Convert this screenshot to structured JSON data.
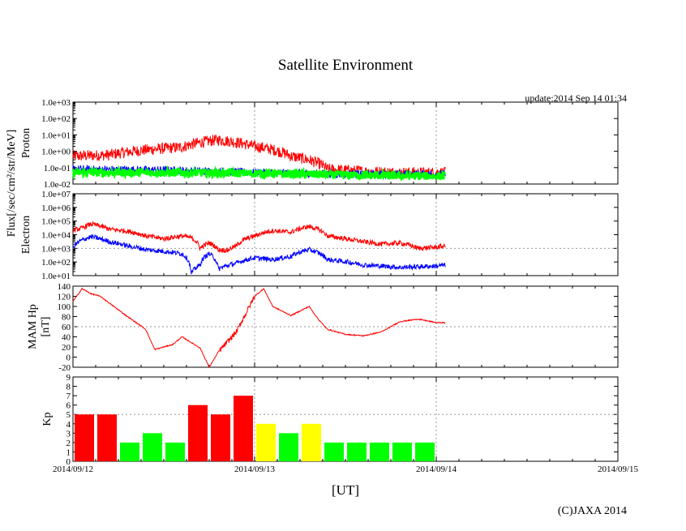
{
  "title": "Satellite Environment",
  "update": "update:2014 Sep 14 01:34",
  "copyright": "(C)JAXA 2014",
  "xlabel": "[UT]",
  "x_ticks": [
    "2014/09/12",
    "2014/09/13",
    "2014/09/14",
    "2014/09/15"
  ],
  "flux_label": "Flux[/sec/cm²/str/MeV]",
  "colors": {
    "red": "#ff0000",
    "blue": "#0000ff",
    "green": "#00ff00",
    "yellow": "#ffff00",
    "grid": "#999999"
  },
  "chart_data": [
    {
      "type": "line",
      "panel": "proton",
      "ylabel": "Proton",
      "yscale": "log",
      "ylim": [
        0.01,
        1000
      ],
      "xlim": [
        "2014/09/12",
        "2014/09/15"
      ],
      "yticks": [
        "1.0e-02",
        "1.0e-01",
        "1.0e+00",
        "1.0e+01",
        "1.0e+02",
        "1.0e+03"
      ],
      "series": [
        {
          "color": "#ff0000",
          "x": [
            0,
            0.2,
            0.4,
            0.6,
            0.8,
            1.0,
            1.2,
            1.4,
            1.6,
            1.8,
            2.0,
            2.05
          ],
          "y": [
            0.5,
            0.6,
            1.2,
            1.8,
            5.0,
            2.0,
            0.5,
            0.08,
            0.06,
            0.05,
            0.05,
            0.05
          ]
        },
        {
          "color": "#0000ff",
          "x": [
            0,
            0.5,
            1.0,
            1.5,
            2.05
          ],
          "y": [
            0.08,
            0.07,
            0.05,
            0.04,
            0.04
          ]
        },
        {
          "color": "#00ff00",
          "x": [
            0,
            0.5,
            1.0,
            1.5,
            2.05
          ],
          "y": [
            0.05,
            0.05,
            0.045,
            0.035,
            0.03
          ]
        }
      ]
    },
    {
      "type": "line",
      "panel": "electron",
      "ylabel": "Electron",
      "yscale": "log",
      "ylim": [
        10,
        10000000
      ],
      "xlim": [
        "2014/09/12",
        "2014/09/15"
      ],
      "yticks": [
        "1.0e+01",
        "1.0e+02",
        "1.0e+03",
        "1.0e+04",
        "1.0e+05",
        "1.0e+06",
        "1.0e+07"
      ],
      "series": [
        {
          "color": "#ff0000",
          "x": [
            0,
            0.05,
            0.1,
            0.2,
            0.3,
            0.4,
            0.5,
            0.6,
            0.65,
            0.7,
            0.75,
            0.8,
            0.85,
            0.9,
            1.0,
            1.1,
            1.2,
            1.3,
            1.4,
            1.5,
            1.6,
            1.7,
            1.8,
            1.9,
            2.0,
            2.05
          ],
          "y": [
            20000,
            30000,
            60000,
            25000,
            18000,
            8000,
            5000,
            8000,
            6000,
            1000,
            2500,
            800,
            700,
            1500,
            8000,
            20000,
            15000,
            40000,
            8000,
            5000,
            3000,
            2000,
            2500,
            1000,
            1200,
            1500
          ]
        },
        {
          "color": "#0000ff",
          "x": [
            0,
            0.1,
            0.2,
            0.3,
            0.4,
            0.5,
            0.6,
            0.65,
            0.7,
            0.75,
            0.8,
            0.9,
            1.0,
            1.1,
            1.2,
            1.3,
            1.4,
            1.6,
            1.8,
            2.0,
            2.05
          ],
          "y": [
            1000,
            7000,
            3000,
            1500,
            800,
            600,
            400,
            12,
            60,
            400,
            30,
            80,
            200,
            150,
            250,
            800,
            150,
            60,
            40,
            50,
            60
          ]
        }
      ]
    },
    {
      "type": "line",
      "panel": "hp",
      "ylabel": "MAM Hp",
      "yunit": "[nT]",
      "ylim": [
        -20,
        140
      ],
      "xlim": [
        "2014/09/12",
        "2014/09/15"
      ],
      "yticks": [
        "-20",
        "0",
        "20",
        "40",
        "60",
        "80",
        "100",
        "120",
        "140"
      ],
      "series": [
        {
          "color": "#ff0000",
          "x": [
            0,
            0.05,
            0.1,
            0.15,
            0.3,
            0.4,
            0.45,
            0.55,
            0.6,
            0.7,
            0.75,
            0.8,
            0.9,
            1.0,
            1.05,
            1.1,
            1.2,
            1.3,
            1.35,
            1.4,
            1.5,
            1.6,
            1.7,
            1.8,
            1.9,
            2.0,
            2.05
          ],
          "y": [
            110,
            135,
            125,
            120,
            80,
            55,
            15,
            25,
            40,
            18,
            -20,
            10,
            50,
            120,
            135,
            100,
            82,
            100,
            75,
            55,
            45,
            42,
            50,
            70,
            75,
            68,
            68
          ]
        }
      ]
    },
    {
      "type": "bar",
      "panel": "kp",
      "ylabel": "Kp",
      "ylim": [
        0,
        9
      ],
      "xlim": [
        "2014/09/12",
        "2014/09/15"
      ],
      "yticks": [
        "0",
        "1",
        "2",
        "3",
        "4",
        "5",
        "6",
        "7",
        "8",
        "9"
      ],
      "bar_interval_hours": 3,
      "values": [
        5,
        5,
        2,
        3,
        2,
        6,
        5,
        7,
        4,
        3,
        4,
        2,
        2,
        2,
        2,
        2
      ],
      "bar_colors": [
        "#ff0000",
        "#ff0000",
        "#00ff00",
        "#00ff00",
        "#00ff00",
        "#ff0000",
        "#ff0000",
        "#ff0000",
        "#ffff00",
        "#00ff00",
        "#ffff00",
        "#00ff00",
        "#00ff00",
        "#00ff00",
        "#00ff00",
        "#00ff00"
      ]
    }
  ]
}
